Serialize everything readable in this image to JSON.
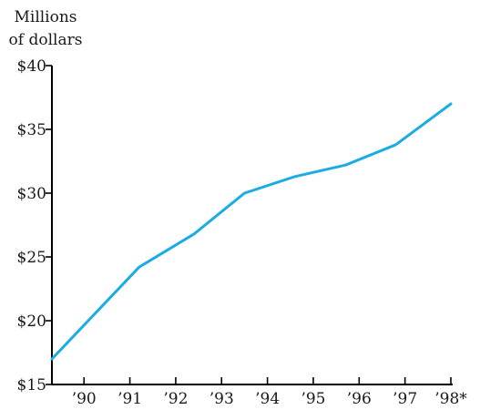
{
  "chart_data": {
    "type": "line",
    "title": "",
    "xlabel": "",
    "ylabel": [
      "Millions",
      "of dollars"
    ],
    "ylim": [
      15,
      40
    ],
    "yticks": [
      15,
      20,
      25,
      30,
      35,
      40
    ],
    "ytick_labels": [
      "$15",
      "$20",
      "$25",
      "$30",
      "$35",
      "$40"
    ],
    "xlim": [
      1989.3,
      1998
    ],
    "xticks": [
      1990,
      1991,
      1992,
      1993,
      1994,
      1995,
      1996,
      1997,
      1998
    ],
    "xtick_labels": [
      "’90",
      "’91",
      "’92",
      "’93",
      "’94",
      "’95",
      "’96",
      "’97",
      "’98*"
    ],
    "grid": false,
    "legend": "none",
    "series": [
      {
        "color": "#1aace2",
        "x": [
          1989.3,
          1991.2,
          1992.4,
          1993.5,
          1994.6,
          1995.7,
          1996.8,
          1998.0
        ],
        "y": [
          17.0,
          24.2,
          26.8,
          30.0,
          31.3,
          32.2,
          33.8,
          37.0
        ]
      }
    ]
  }
}
